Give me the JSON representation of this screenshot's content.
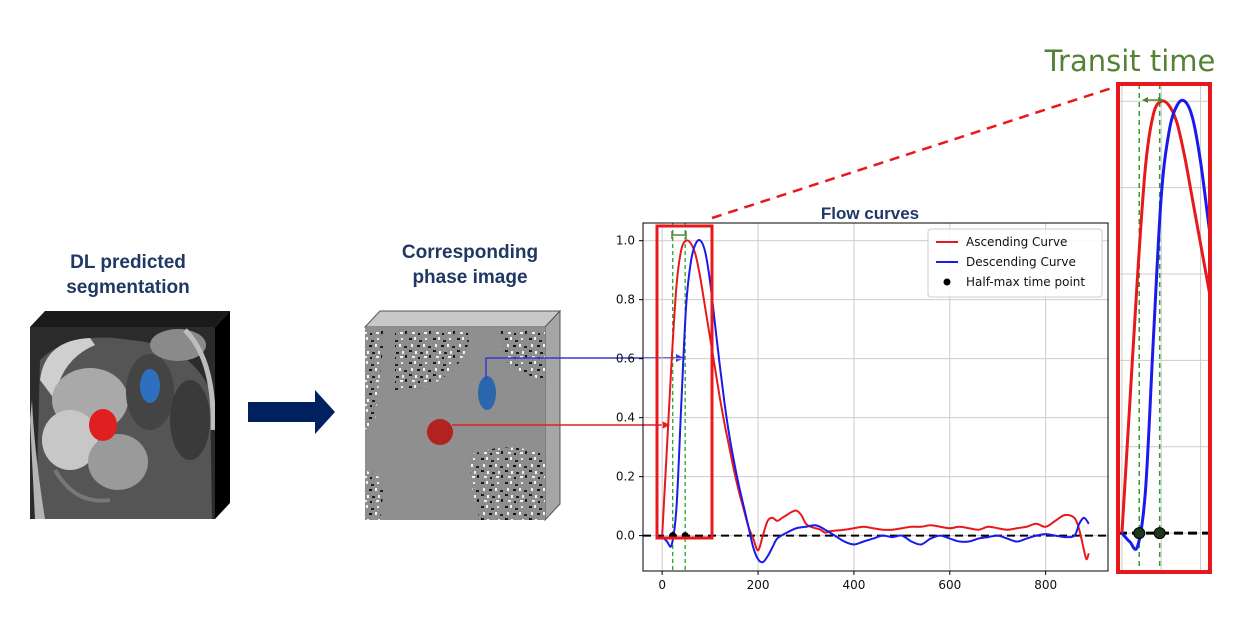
{
  "labels": {
    "segmentation_line1": "DL predicted",
    "segmentation_line2": "segmentation",
    "phase_line1": "Corresponding",
    "phase_line2": "phase image",
    "transit_time": "Transit time"
  },
  "colors": {
    "navy": "#1f3864",
    "arrow": "#002060",
    "ascending": "#e8191c",
    "descending": "#1a1aeb",
    "highlight": "#e8191c",
    "transit": "#548235",
    "marker": "#000000",
    "grid": "#cccccc"
  },
  "chart_data": {
    "type": "line",
    "title": "Flow curves",
    "xlabel": "",
    "ylabel": "",
    "xlim": [
      -40,
      930
    ],
    "ylim": [
      -0.12,
      1.06
    ],
    "xticks": [
      0,
      200,
      400,
      600,
      800
    ],
    "yticks": [
      0.0,
      0.2,
      0.4,
      0.6,
      0.8,
      1.0
    ],
    "grid": true,
    "legend_position": "top-right",
    "series": [
      {
        "name": "Ascending Curve",
        "color": "#e8191c",
        "x": [
          0,
          10,
          20,
          30,
          40,
          50,
          60,
          70,
          80,
          90,
          100,
          110,
          120,
          130,
          140,
          150,
          160,
          170,
          180,
          190,
          200,
          210,
          220,
          230,
          240,
          250,
          260,
          270,
          280,
          290,
          300,
          310,
          320,
          330,
          340,
          350,
          380,
          400,
          420,
          440,
          460,
          480,
          500,
          520,
          540,
          560,
          580,
          600,
          620,
          640,
          660,
          680,
          700,
          720,
          740,
          760,
          780,
          800,
          820,
          840,
          860,
          870,
          880,
          885,
          890
        ],
        "y": [
          0.0,
          0.3,
          0.6,
          0.85,
          0.97,
          1.0,
          0.99,
          0.95,
          0.87,
          0.77,
          0.67,
          0.57,
          0.47,
          0.38,
          0.3,
          0.22,
          0.15,
          0.09,
          0.03,
          -0.01,
          -0.05,
          0.0,
          0.05,
          0.06,
          0.05,
          0.06,
          0.07,
          0.08,
          0.085,
          0.07,
          0.04,
          0.03,
          0.025,
          0.02,
          0.01,
          0.015,
          0.02,
          0.025,
          0.03,
          0.025,
          0.02,
          0.02,
          0.025,
          0.03,
          0.03,
          0.035,
          0.03,
          0.025,
          0.03,
          0.025,
          0.02,
          0.03,
          0.025,
          0.02,
          0.025,
          0.03,
          0.04,
          0.03,
          0.05,
          0.07,
          0.06,
          0.02,
          -0.05,
          -0.08,
          -0.06
        ]
      },
      {
        "name": "Descending Curve",
        "color": "#1a1aeb",
        "x": [
          0,
          10,
          20,
          30,
          40,
          50,
          60,
          70,
          80,
          90,
          100,
          110,
          120,
          130,
          140,
          150,
          160,
          170,
          180,
          190,
          200,
          210,
          220,
          230,
          240,
          260,
          280,
          300,
          320,
          340,
          360,
          380,
          400,
          420,
          440,
          460,
          480,
          500,
          520,
          540,
          560,
          580,
          600,
          620,
          640,
          660,
          680,
          700,
          720,
          740,
          760,
          780,
          800,
          820,
          840,
          860,
          870,
          880,
          890
        ],
        "y": [
          0.0,
          -0.02,
          -0.03,
          0.1,
          0.45,
          0.78,
          0.93,
          0.99,
          1.0,
          0.96,
          0.86,
          0.72,
          0.58,
          0.45,
          0.34,
          0.25,
          0.17,
          0.1,
          0.03,
          -0.04,
          -0.08,
          -0.09,
          -0.07,
          -0.04,
          -0.01,
          0.01,
          0.025,
          0.03,
          0.035,
          0.02,
          0.0,
          -0.02,
          -0.03,
          -0.02,
          -0.01,
          0.0,
          -0.005,
          0.0,
          -0.02,
          -0.03,
          -0.01,
          0.0,
          -0.01,
          -0.02,
          -0.02,
          -0.01,
          -0.005,
          0.0,
          -0.01,
          -0.02,
          -0.01,
          0.0,
          0.005,
          0.0,
          -0.005,
          0.0,
          0.04,
          0.06,
          0.04
        ]
      },
      {
        "name": "Half-max time point",
        "color": "#000000",
        "x": [
          22,
          48
        ],
        "y": [
          0.0,
          0.0
        ]
      }
    ],
    "reference_lines": {
      "baseline_y": 0.0,
      "vertical_x": [
        22,
        48
      ]
    }
  }
}
